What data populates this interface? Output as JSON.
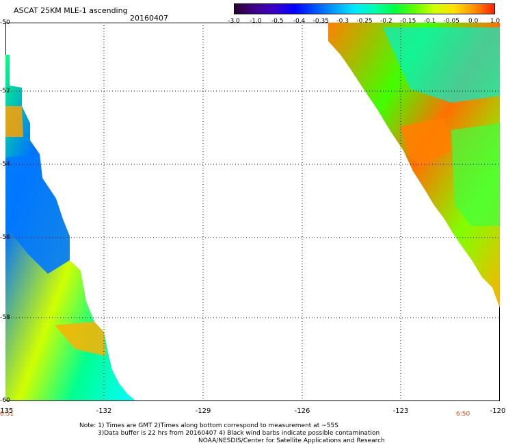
{
  "header": {
    "title": "ASCAT 25KM MLE-1 ascending",
    "date": "20160407"
  },
  "colorbar": {
    "labels": [
      "-3.0",
      "-1.0",
      "-0.5",
      "-0.4",
      "-0.35",
      "-0.3",
      "-0.25",
      "-0.2",
      "-0.15",
      "-0.1",
      "-0.05",
      "0.0",
      "1.0"
    ],
    "colors": [
      "#2a0030",
      "#40008a",
      "#3a00c8",
      "#0000ff",
      "#0050ff",
      "#00a0ff",
      "#00e8ff",
      "#00ffb0",
      "#00ff40",
      "#60ff00",
      "#d0ff00",
      "#ffe000",
      "#ff9000",
      "#ff2000"
    ]
  },
  "axes": {
    "y_labels": [
      "-50",
      "-52",
      "-54",
      "-56",
      "-58",
      "-60"
    ],
    "x_labels": [
      "-135",
      "-132",
      "-129",
      "-126",
      "-123",
      "-120"
    ]
  },
  "times": {
    "left": "6:51",
    "right": "6:50"
  },
  "notes": {
    "line1": "Note: 1) Times are GMT 2)Times along bottom correspond to measurement at ~55S",
    "line2": "3)Data buffer is 22 hrs from 20160407 4) Black wind barbs indicate possible contamination",
    "line3": "NOAA/NESDIS/Center for Satellite Applications and Research"
  }
}
